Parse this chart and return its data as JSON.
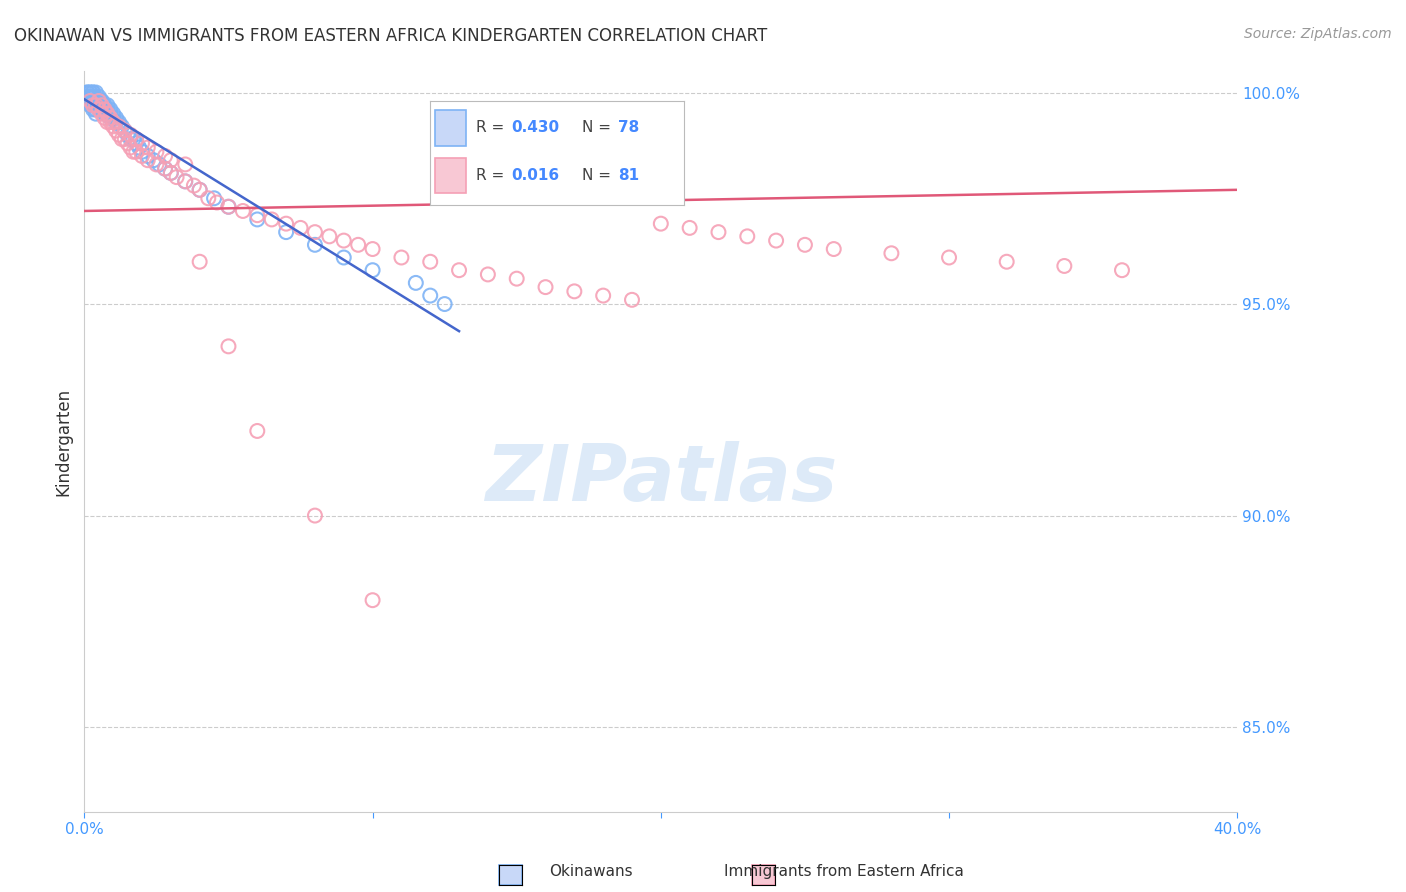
{
  "title": "OKINAWAN VS IMMIGRANTS FROM EASTERN AFRICA KINDERGARTEN CORRELATION CHART",
  "source": "Source: ZipAtlas.com",
  "ylabel": "Kindergarten",
  "xmin": 0.0,
  "xmax": 0.4,
  "ymin": 0.83,
  "ymax": 1.005,
  "yticks": [
    0.85,
    0.9,
    0.95,
    1.0
  ],
  "ytick_labels": [
    "85.0%",
    "90.0%",
    "95.0%",
    "100.0%"
  ],
  "xticks": [
    0.0,
    0.1,
    0.2,
    0.3,
    0.4
  ],
  "xtick_labels": [
    "0.0%",
    "",
    "",
    "",
    "40.0%"
  ],
  "color_blue": "#7EB3F5",
  "color_pink": "#F5A0B5",
  "trendline_color_blue": "#4466CC",
  "trendline_color_pink": "#E05878",
  "grid_color": "#CCCCCC",
  "watermark_color": "#AACCEE",
  "blue_scatter_x": [
    0.001,
    0.001,
    0.001,
    0.001,
    0.002,
    0.002,
    0.002,
    0.002,
    0.002,
    0.003,
    0.003,
    0.003,
    0.003,
    0.003,
    0.003,
    0.003,
    0.004,
    0.004,
    0.004,
    0.004,
    0.004,
    0.004,
    0.005,
    0.005,
    0.005,
    0.005,
    0.005,
    0.006,
    0.006,
    0.006,
    0.006,
    0.007,
    0.007,
    0.007,
    0.007,
    0.008,
    0.008,
    0.008,
    0.009,
    0.009,
    0.009,
    0.01,
    0.01,
    0.011,
    0.011,
    0.012,
    0.013,
    0.014,
    0.015,
    0.016,
    0.017,
    0.018,
    0.019,
    0.02,
    0.022,
    0.024,
    0.026,
    0.028,
    0.03,
    0.035,
    0.04,
    0.045,
    0.05,
    0.06,
    0.07,
    0.08,
    0.09,
    0.1,
    0.115,
    0.12,
    0.125,
    0.002,
    0.003,
    0.004,
    0.005,
    0.006
  ],
  "blue_scatter_y": [
    1.0,
    1.0,
    0.999,
    0.998,
    1.0,
    0.999,
    0.999,
    0.998,
    0.997,
    1.0,
    1.0,
    0.999,
    0.999,
    0.998,
    0.997,
    0.996,
    1.0,
    0.999,
    0.998,
    0.997,
    0.996,
    0.995,
    0.999,
    0.998,
    0.998,
    0.997,
    0.996,
    0.998,
    0.998,
    0.997,
    0.996,
    0.997,
    0.997,
    0.996,
    0.995,
    0.997,
    0.996,
    0.995,
    0.996,
    0.995,
    0.994,
    0.995,
    0.994,
    0.994,
    0.993,
    0.993,
    0.992,
    0.991,
    0.99,
    0.989,
    0.989,
    0.988,
    0.987,
    0.986,
    0.985,
    0.984,
    0.983,
    0.982,
    0.981,
    0.979,
    0.977,
    0.975,
    0.973,
    0.97,
    0.967,
    0.964,
    0.961,
    0.958,
    0.955,
    0.952,
    0.95,
    1.0,
    0.999,
    0.998,
    0.997,
    0.996
  ],
  "pink_scatter_x": [
    0.002,
    0.003,
    0.004,
    0.005,
    0.006,
    0.007,
    0.008,
    0.009,
    0.01,
    0.011,
    0.012,
    0.013,
    0.014,
    0.015,
    0.016,
    0.017,
    0.018,
    0.02,
    0.022,
    0.025,
    0.028,
    0.03,
    0.032,
    0.035,
    0.038,
    0.04,
    0.043,
    0.046,
    0.05,
    0.055,
    0.06,
    0.065,
    0.07,
    0.075,
    0.08,
    0.085,
    0.09,
    0.095,
    0.1,
    0.11,
    0.12,
    0.13,
    0.14,
    0.15,
    0.16,
    0.17,
    0.18,
    0.19,
    0.2,
    0.21,
    0.22,
    0.23,
    0.24,
    0.25,
    0.26,
    0.28,
    0.3,
    0.32,
    0.34,
    0.36,
    0.005,
    0.006,
    0.007,
    0.008,
    0.009,
    0.01,
    0.012,
    0.014,
    0.016,
    0.018,
    0.02,
    0.022,
    0.025,
    0.028,
    0.03,
    0.035,
    0.04,
    0.05,
    0.06,
    0.08,
    0.1
  ],
  "pink_scatter_y": [
    0.998,
    0.997,
    0.997,
    0.996,
    0.995,
    0.994,
    0.993,
    0.993,
    0.992,
    0.991,
    0.99,
    0.989,
    0.989,
    0.988,
    0.987,
    0.986,
    0.986,
    0.985,
    0.984,
    0.983,
    0.982,
    0.981,
    0.98,
    0.979,
    0.978,
    0.977,
    0.975,
    0.974,
    0.973,
    0.972,
    0.971,
    0.97,
    0.969,
    0.968,
    0.967,
    0.966,
    0.965,
    0.964,
    0.963,
    0.961,
    0.96,
    0.958,
    0.957,
    0.956,
    0.954,
    0.953,
    0.952,
    0.951,
    0.969,
    0.968,
    0.967,
    0.966,
    0.965,
    0.964,
    0.963,
    0.962,
    0.961,
    0.96,
    0.959,
    0.958,
    0.998,
    0.997,
    0.996,
    0.995,
    0.994,
    0.993,
    0.992,
    0.991,
    0.99,
    0.989,
    0.988,
    0.987,
    0.986,
    0.985,
    0.984,
    0.983,
    0.96,
    0.94,
    0.92,
    0.9,
    0.88
  ],
  "pink_trendline_x": [
    0.0,
    0.4
  ],
  "pink_trendline_y": [
    0.972,
    0.977
  ]
}
